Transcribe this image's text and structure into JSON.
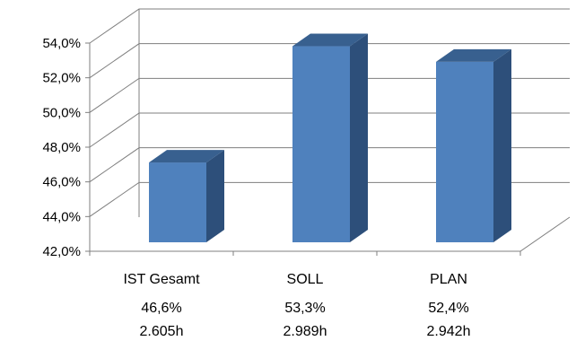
{
  "chart_data": {
    "type": "bar",
    "title": "",
    "xlabel": "",
    "ylabel": "",
    "ylim": [
      42,
      54
    ],
    "y_ticks": [
      "42,0%",
      "44,0%",
      "46,0%",
      "48,0%",
      "50,0%",
      "52,0%",
      "54,0%"
    ],
    "categories": [
      "IST Gesamt",
      "SOLL",
      "PLAN"
    ],
    "values": [
      46.6,
      53.3,
      52.4
    ],
    "value_labels": [
      "46,6%",
      "53,3%",
      "52,4%"
    ],
    "hours_labels": [
      "2.605h",
      "2.989h",
      "2.942h"
    ],
    "grid": true,
    "style": "3d-column",
    "colors": {
      "front": "#4F81BD",
      "side": "#2D4F7A",
      "top": "#38608F",
      "grid": "#7F7F7F"
    }
  }
}
